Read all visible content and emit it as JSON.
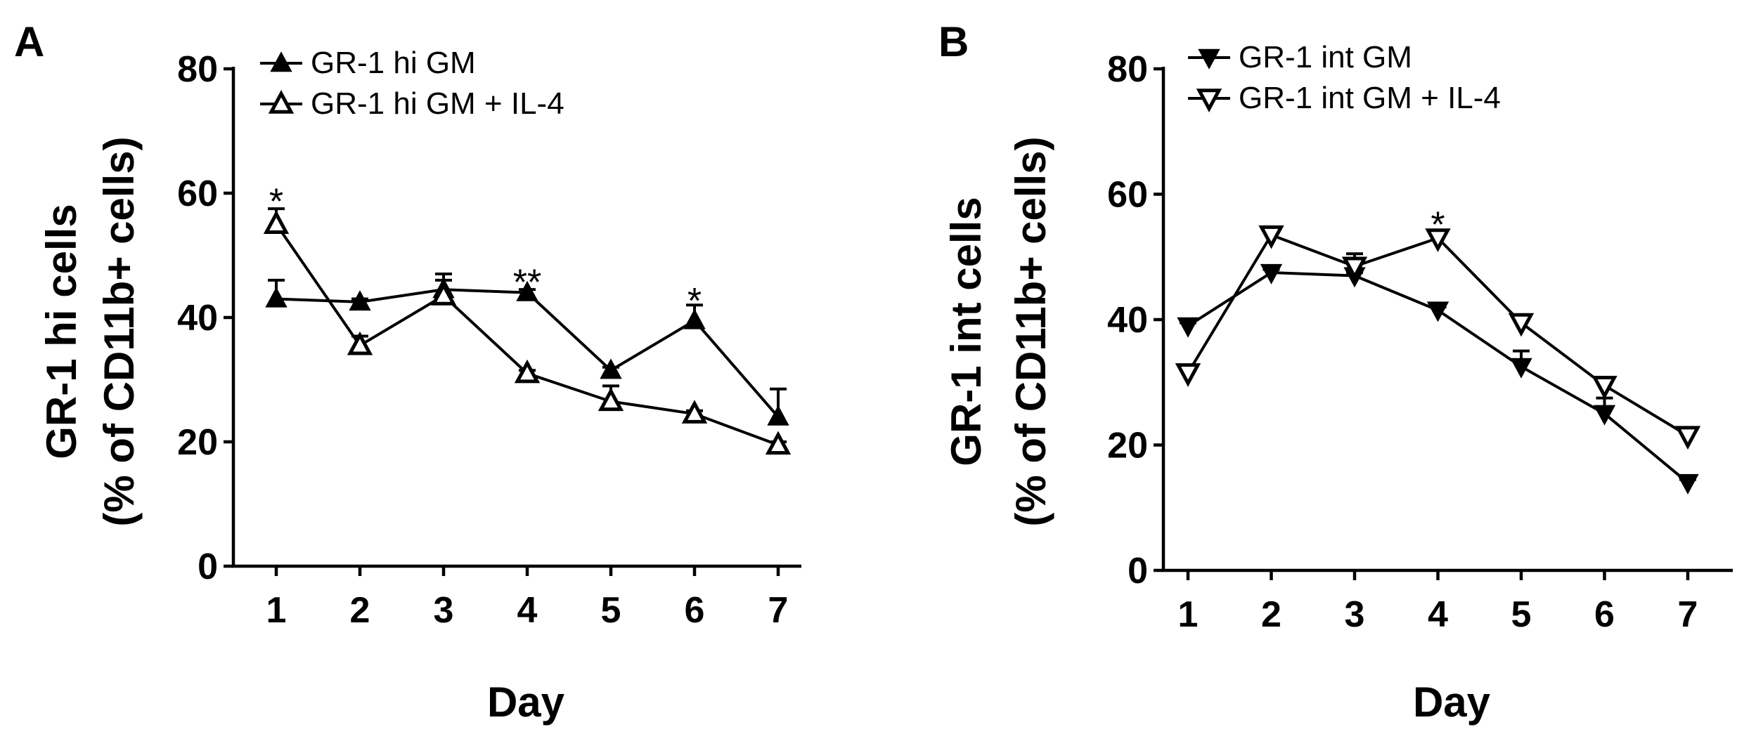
{
  "chart_data": [
    {
      "type": "line",
      "panel_label": "A",
      "xlabel": "Day",
      "ylabel_line1": "GR-1 hi cells",
      "ylabel_line2": "(% of CD11b+ cells)",
      "x": [
        1,
        2,
        3,
        4,
        5,
        6,
        7
      ],
      "ylim": [
        0,
        80
      ],
      "yticks": [
        0,
        20,
        40,
        60,
        80
      ],
      "legend_position": "top-left",
      "series": [
        {
          "name": "GR-1 hi GM",
          "marker": "triangle-up-filled",
          "values": [
            43,
            42.5,
            44.5,
            44,
            31.5,
            39.5,
            24
          ],
          "errors": [
            3,
            0.5,
            2.5,
            0.5,
            0.5,
            2.5,
            4.5
          ]
        },
        {
          "name": "GR-1 hi GM + IL-4",
          "marker": "triangle-up-open",
          "values": [
            55,
            35.5,
            43.5,
            31,
            26.5,
            24.5,
            19.5
          ],
          "errors": [
            2.5,
            1.5,
            2.5,
            0.5,
            2.5,
            0.5,
            0.5
          ]
        }
      ],
      "annotations": [
        {
          "x": 1,
          "y": 60.5,
          "text": "*"
        },
        {
          "x": 4,
          "y": 47.5,
          "text": "**"
        },
        {
          "x": 6,
          "y": 44.5,
          "text": "*"
        }
      ]
    },
    {
      "type": "line",
      "panel_label": "B",
      "xlabel": "Day",
      "ylabel_line1": "GR-1 int cells",
      "ylabel_line2": "(% of CD11b+ cells)",
      "x": [
        1,
        2,
        3,
        4,
        5,
        6,
        7
      ],
      "ylim": [
        0,
        80
      ],
      "yticks": [
        0,
        20,
        40,
        60,
        80
      ],
      "legend_position": "top-left",
      "series": [
        {
          "name": "GR-1 int GM",
          "marker": "triangle-down-filled",
          "values": [
            39,
            47.5,
            47,
            41.5,
            32.5,
            25,
            14
          ],
          "errors": [
            0.5,
            0.5,
            0.5,
            0.5,
            2.5,
            2.5,
            0.5
          ]
        },
        {
          "name": "GR-1 int GM + IL-4",
          "marker": "triangle-down-open",
          "values": [
            31.5,
            53.5,
            48.5,
            53,
            39.5,
            29.5,
            21.5
          ],
          "errors": [
            0.5,
            0.5,
            2,
            0.5,
            0.5,
            0.5,
            0.5
          ]
        }
      ],
      "annotations": [
        {
          "x": 4,
          "y": 57,
          "text": "*"
        }
      ]
    }
  ]
}
